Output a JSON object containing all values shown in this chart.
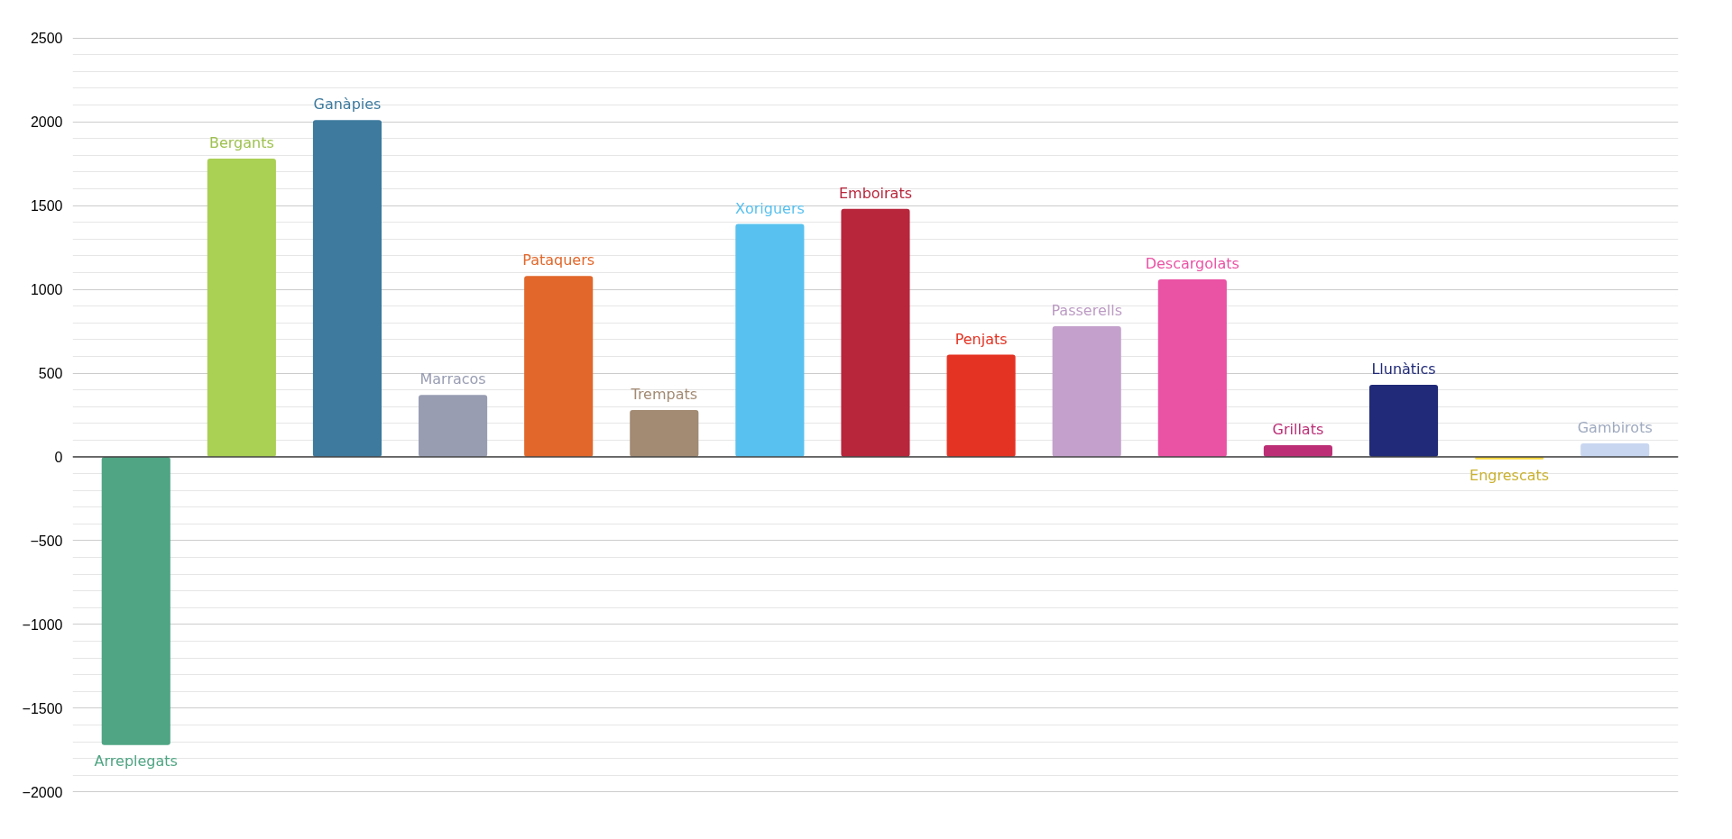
{
  "chart_data": {
    "type": "bar",
    "categories": [
      "Arreplegats",
      "Bergants",
      "Ganàpies",
      "Marracos",
      "Pataquers",
      "Trempats",
      "Xoriguers",
      "Emboirats",
      "Penjats",
      "Passerells",
      "Descargolats",
      "Grillats",
      "Llunàtics",
      "Engrescats",
      "Gambirots"
    ],
    "values": [
      -1720,
      1780,
      2010,
      370,
      1080,
      280,
      1390,
      1480,
      610,
      780,
      1060,
      70,
      430,
      -15,
      80
    ],
    "colors": [
      "#4fa584",
      "#aad054",
      "#3d7a9e",
      "#989db2",
      "#e2672a",
      "#a28a73",
      "#58c1ef",
      "#b8263c",
      "#e53323",
      "#c4a1cc",
      "#ea52a4",
      "#bc2f76",
      "#202a78",
      "#f5d638",
      "#c8d6f0"
    ],
    "ylim": [
      -2000,
      2500
    ],
    "yticks": [
      -2000,
      -1500,
      -1000,
      -500,
      0,
      500,
      1000,
      1500,
      2000,
      2500
    ],
    "grid": "y",
    "tick_labels": "y",
    "legend": false
  }
}
